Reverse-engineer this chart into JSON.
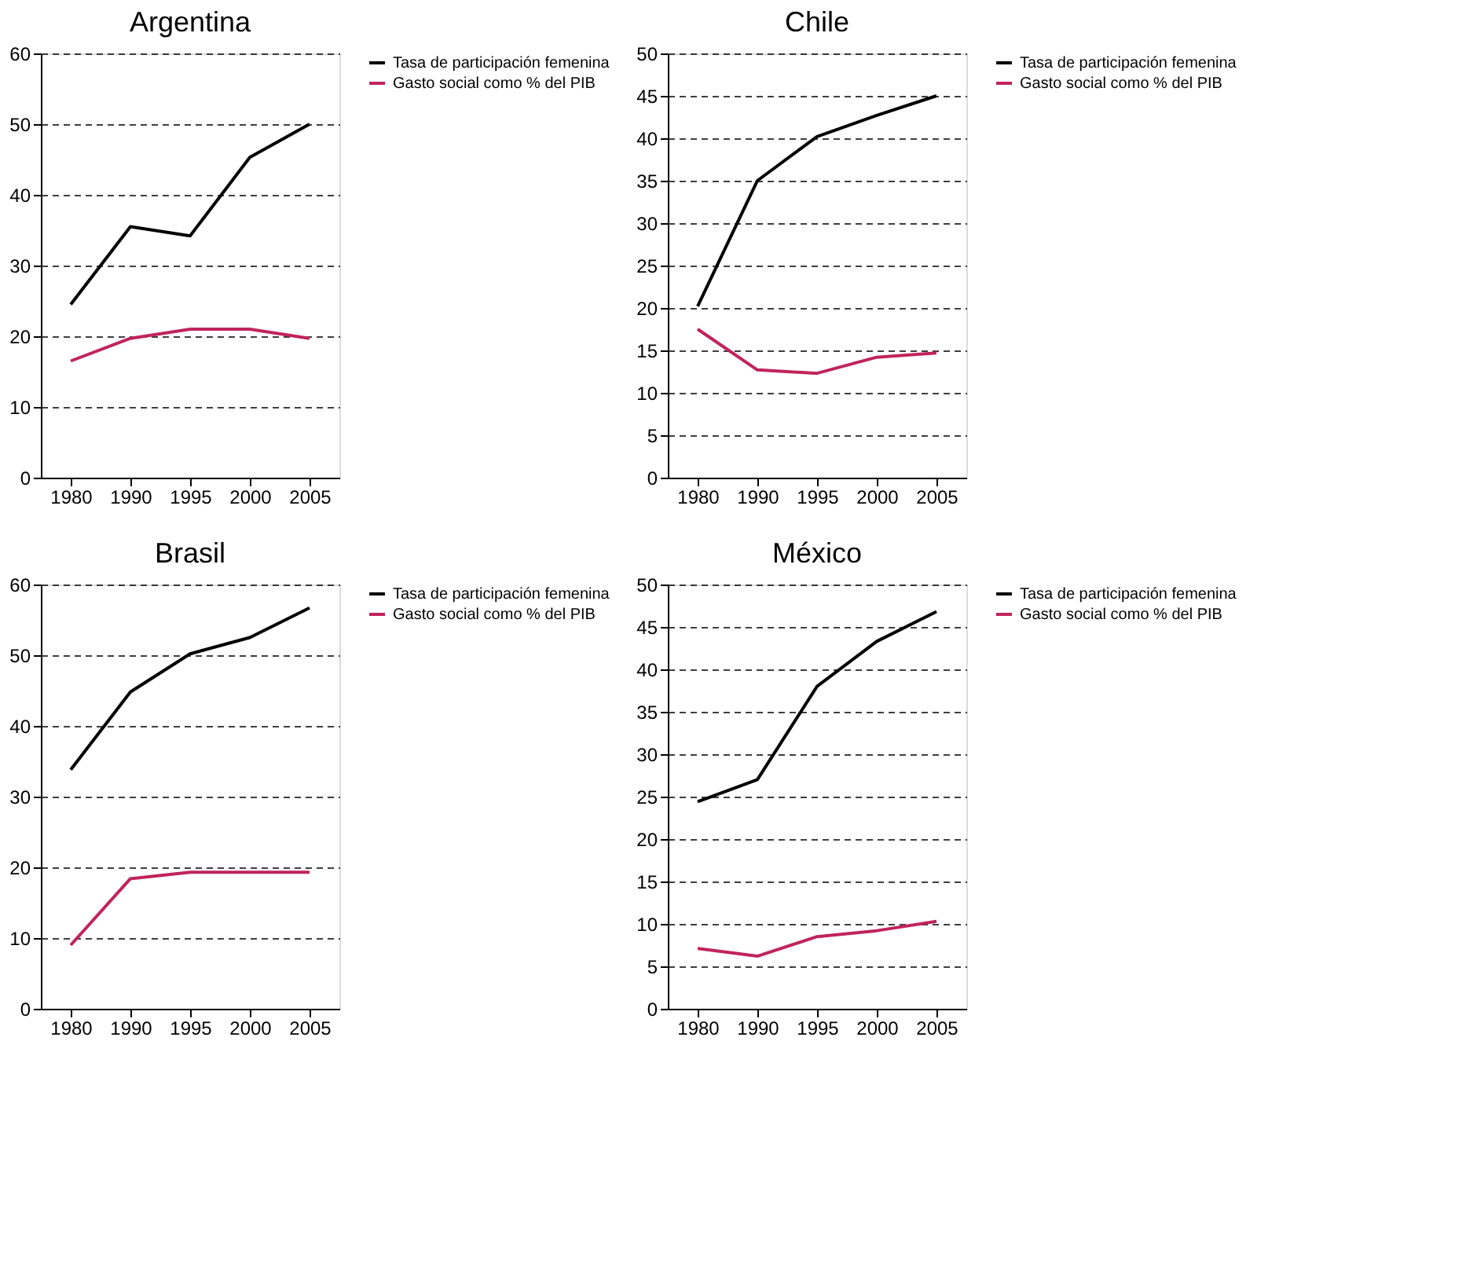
{
  "chart_data": [
    {
      "type": "line",
      "title": "Argentina",
      "categories": [
        "1980",
        "1990",
        "1995",
        "2000",
        "2005"
      ],
      "ylim": [
        0,
        60
      ],
      "yticks": [
        0,
        10,
        20,
        30,
        40,
        50,
        60
      ],
      "grid": "y",
      "legend": "right",
      "marker": "none",
      "line_style": "solid",
      "series": [
        {
          "name": "Tasa de participación femenina",
          "color": "#000000",
          "values": [
            24.5,
            35.5,
            34.2,
            45.3,
            50
          ]
        },
        {
          "name": "Gasto social como % del PIB",
          "color": "#c0245c",
          "values": [
            16.5,
            19.7,
            21,
            21,
            19.7
          ]
        }
      ]
    },
    {
      "type": "line",
      "title": "Chile",
      "categories": [
        "1980",
        "1990",
        "1995",
        "2000",
        "2005"
      ],
      "ylim": [
        0,
        50
      ],
      "yticks": [
        0,
        5,
        10,
        15,
        20,
        25,
        30,
        35,
        40,
        45,
        50
      ],
      "grid": "y",
      "legend": "right",
      "marker": "none",
      "line_style": "solid",
      "series": [
        {
          "name": "Tasa de participación femenina",
          "color": "#000000",
          "values": [
            20.2,
            35,
            40.2,
            42.7,
            45
          ]
        },
        {
          "name": "Gasto social como % del PIB",
          "color": "#c0245c",
          "values": [
            17.5,
            12.7,
            12.3,
            14.2,
            14.7
          ]
        }
      ]
    },
    {
      "type": "line",
      "title": "Brasil",
      "categories": [
        "1980",
        "1990",
        "1995",
        "2000",
        "2005"
      ],
      "ylim": [
        0,
        60
      ],
      "yticks": [
        0,
        10,
        20,
        30,
        40,
        50,
        60
      ],
      "grid": "y",
      "legend": "right",
      "marker": "none",
      "line_style": "solid",
      "series": [
        {
          "name": "Tasa de participación femenina",
          "color": "#000000",
          "values": [
            33.8,
            44.8,
            50.2,
            52.5,
            56.7
          ]
        },
        {
          "name": "Gasto social como % del PIB",
          "color": "#c0245c",
          "values": [
            9,
            18.4,
            19.3,
            19.3,
            19.3
          ]
        }
      ]
    },
    {
      "type": "line",
      "title": "México",
      "categories": [
        "1980",
        "1990",
        "1995",
        "2000",
        "2005"
      ],
      "ylim": [
        0,
        50
      ],
      "yticks": [
        0,
        5,
        10,
        15,
        20,
        25,
        30,
        35,
        40,
        45,
        50
      ],
      "grid": "y",
      "legend": "right",
      "marker": "none",
      "line_style": "solid",
      "series": [
        {
          "name": "Tasa de participación femenina",
          "color": "#000000",
          "values": [
            24.4,
            27,
            38,
            43.3,
            46.8
          ]
        },
        {
          "name": "Gasto social como % del PIB",
          "color": "#c0245c",
          "values": [
            7.1,
            6.2,
            8.5,
            9.2,
            10.3
          ]
        }
      ]
    }
  ]
}
